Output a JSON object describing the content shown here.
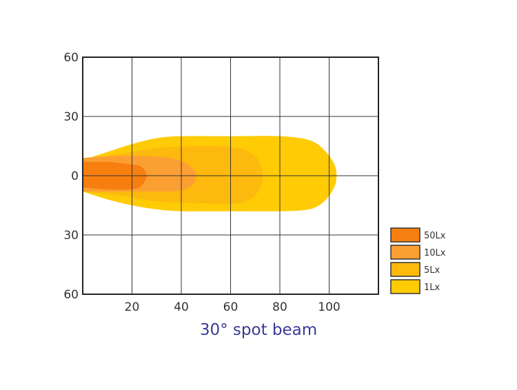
{
  "chart_data": {
    "type": "area",
    "title": "30°  spot beam",
    "xlabel": "",
    "ylabel": "",
    "xlim": [
      0,
      120
    ],
    "ylim": [
      -60,
      60
    ],
    "x_ticks": [
      20,
      40,
      60,
      80,
      100
    ],
    "y_ticks": [
      60,
      30,
      0,
      30,
      60
    ],
    "grid": true,
    "legend_placement": "bottom-right, outside plot",
    "series": [
      {
        "name": "1Lx",
        "color": "#fecb05",
        "reach": 103,
        "half_width": 20,
        "outline": [
          [
            0,
            8
          ],
          [
            10,
            12
          ],
          [
            20,
            16
          ],
          [
            30,
            19
          ],
          [
            40,
            20
          ],
          [
            60,
            20
          ],
          [
            80,
            20
          ],
          [
            92,
            18
          ],
          [
            98,
            13
          ],
          [
            102,
            6
          ],
          [
            103,
            0
          ],
          [
            102,
            -6
          ],
          [
            98,
            -13
          ],
          [
            92,
            -17
          ],
          [
            80,
            -18
          ],
          [
            60,
            -18
          ],
          [
            40,
            -18
          ],
          [
            30,
            -17
          ],
          [
            20,
            -15
          ],
          [
            10,
            -12
          ],
          [
            0,
            -8
          ]
        ]
      },
      {
        "name": "5Lx",
        "color": "#fdb90d",
        "reach": 73,
        "half_width": 15,
        "outline": [
          [
            0,
            8
          ],
          [
            15,
            11
          ],
          [
            30,
            14
          ],
          [
            50,
            15
          ],
          [
            63,
            14
          ],
          [
            69,
            11
          ],
          [
            72,
            6
          ],
          [
            73,
            0
          ],
          [
            72,
            -6
          ],
          [
            69,
            -11
          ],
          [
            63,
            -14
          ],
          [
            50,
            -14
          ],
          [
            30,
            -13
          ],
          [
            15,
            -10
          ],
          [
            0,
            -8
          ]
        ]
      },
      {
        "name": "10Lx",
        "color": "#fc9f33",
        "reach": 46,
        "half_width": 10,
        "outline": [
          [
            0,
            9
          ],
          [
            12,
            10
          ],
          [
            25,
            10
          ],
          [
            35,
            9
          ],
          [
            41,
            7
          ],
          [
            45,
            3
          ],
          [
            46,
            0
          ],
          [
            45,
            -4
          ],
          [
            41,
            -7
          ],
          [
            35,
            -8
          ],
          [
            25,
            -8
          ],
          [
            12,
            -8
          ],
          [
            0,
            -8
          ]
        ]
      },
      {
        "name": "50Lx",
        "color": "#f77f0f",
        "reach": 26,
        "half_width": 7,
        "outline": [
          [
            0,
            7
          ],
          [
            10,
            7
          ],
          [
            18,
            6
          ],
          [
            23,
            5
          ],
          [
            25,
            3
          ],
          [
            26,
            0
          ],
          [
            25,
            -3
          ],
          [
            23,
            -6
          ],
          [
            18,
            -7
          ],
          [
            10,
            -7
          ],
          [
            0,
            -6
          ]
        ]
      }
    ],
    "legend": [
      "50Lx",
      "10Lx",
      "5Lx",
      "1Lx"
    ]
  }
}
